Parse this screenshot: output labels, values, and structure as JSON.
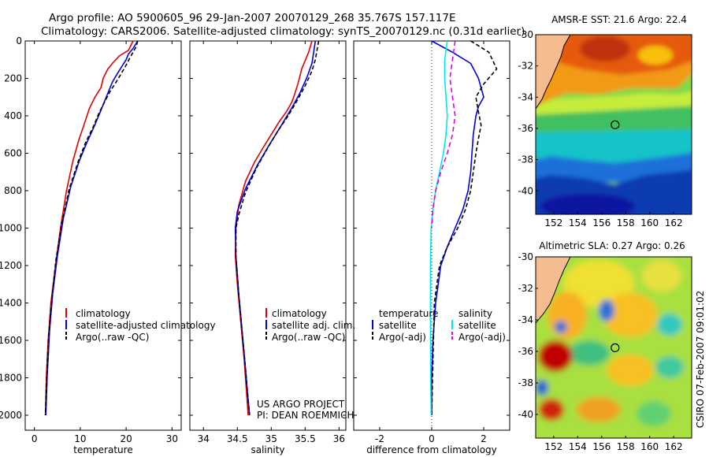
{
  "header": {
    "line1": "Argo profile: AO 5900605_96 29-Jan-2007 20070129_268 35.767S 157.117E",
    "line2": "Climatology: CARS2006. Satellite-adjusted climatology: synTS_20070129.nc (0.31d earlier)"
  },
  "footer": {
    "project": "US ARGO PROJECT",
    "pi": "PI: DEAN ROEMMICH",
    "stamp": "CSIRO 07-Feb-2007 09:01:02"
  },
  "colors": {
    "climatology": "#e00000",
    "satellite": "#0000e0",
    "argo": "#000000",
    "temp_sat_diff": "#00e8e8",
    "sal_argo_diff": "#e000e0",
    "land": "#f5bc8f"
  },
  "chart_data": [
    {
      "type": "line",
      "id": "temperature",
      "xlabel": "temperature",
      "ylabel": "",
      "xlim": [
        -2,
        32
      ],
      "ylim": [
        2080,
        0
      ],
      "y_inverted": true,
      "xticks": [
        "0",
        "10",
        "20",
        "30"
      ],
      "xtick_values": [
        0,
        10,
        20,
        30
      ],
      "yticks": [
        "0",
        "200",
        "400",
        "600",
        "800",
        "1000",
        "1200",
        "1400",
        "1600",
        "1800",
        "2000"
      ],
      "ytick_values": [
        0,
        200,
        400,
        600,
        800,
        1000,
        1200,
        1400,
        1600,
        1800,
        2000
      ],
      "legend": [
        "climatology",
        "satellite-adjusted climatology",
        "Argo(..raw -QC)"
      ],
      "series": [
        {
          "name": "climatology",
          "color": "#e00000",
          "dash": "",
          "x": [
            21.5,
            20.5,
            18.5,
            17.0,
            16.0,
            15.0,
            14.5,
            13.2,
            12.0,
            10.8,
            9.8,
            8.4,
            7.0,
            5.7,
            4.6,
            3.6,
            3.0,
            2.6,
            2.4
          ],
          "y": [
            0,
            50,
            80,
            120,
            150,
            200,
            250,
            300,
            360,
            450,
            520,
            640,
            800,
            1000,
            1200,
            1400,
            1600,
            1800,
            2000
          ]
        },
        {
          "name": "satellite-adjusted climatology",
          "color": "#0000e0",
          "dash": "",
          "x": [
            22.5,
            21.5,
            20.5,
            20.0,
            19.2,
            18.2,
            17.0,
            16.0,
            15.0,
            14.0,
            12.8,
            11.3,
            9.8,
            7.9,
            6.3,
            5.0,
            4.0,
            3.3,
            2.8,
            2.5
          ],
          "y": [
            0,
            40,
            70,
            100,
            130,
            170,
            220,
            280,
            340,
            400,
            470,
            550,
            640,
            780,
            950,
            1150,
            1350,
            1550,
            1780,
            2000
          ]
        },
        {
          "name": "Argo(..raw -QC)",
          "color": "#000000",
          "dash": "5,3",
          "x": [
            22.5,
            22.2,
            21.5,
            20.8,
            20.2,
            19.5,
            18.8,
            17.8,
            16.5,
            15.2,
            14.0,
            12.8,
            11.2,
            9.6,
            7.6,
            6.0,
            4.7,
            3.8,
            3.1,
            2.7,
            2.4
          ],
          "y": [
            0,
            30,
            60,
            90,
            120,
            150,
            180,
            220,
            270,
            330,
            390,
            460,
            540,
            640,
            790,
            970,
            1170,
            1380,
            1580,
            1790,
            2000
          ]
        }
      ]
    },
    {
      "type": "line",
      "id": "salinity",
      "xlabel": "salinity",
      "ylabel": "",
      "xlim": [
        33.8,
        36.1
      ],
      "ylim": [
        2080,
        0
      ],
      "y_inverted": true,
      "xticks": [
        "34",
        "34.5",
        "35",
        "35.5",
        "36"
      ],
      "xtick_values": [
        34,
        34.5,
        35,
        35.5,
        36
      ],
      "legend": [
        "climatology",
        "satellite adj. clim.",
        "Argo(..raw -QC)"
      ],
      "series": [
        {
          "name": "climatology",
          "color": "#e00000",
          "dash": "",
          "x": [
            35.6,
            35.55,
            35.45,
            35.4,
            35.35,
            35.3,
            35.22,
            35.12,
            35.0,
            34.88,
            34.75,
            34.62,
            34.52,
            34.48,
            34.47,
            34.5,
            34.55,
            34.6,
            34.63,
            34.66
          ],
          "y": [
            0,
            60,
            150,
            220,
            280,
            330,
            380,
            430,
            500,
            570,
            650,
            750,
            880,
            1000,
            1150,
            1300,
            1500,
            1700,
            1850,
            2000
          ]
        },
        {
          "name": "satellite adj. clim.",
          "color": "#0000e0",
          "dash": "",
          "x": [
            35.65,
            35.63,
            35.6,
            35.52,
            35.42,
            35.3,
            35.15,
            34.98,
            34.8,
            34.62,
            34.5,
            34.47,
            34.48,
            34.52,
            34.57,
            34.62,
            34.65,
            34.68
          ],
          "y": [
            0,
            50,
            120,
            200,
            280,
            360,
            450,
            550,
            660,
            790,
            910,
            1000,
            1150,
            1350,
            1550,
            1750,
            1880,
            2000
          ]
        },
        {
          "name": "Argo(..raw -QC)",
          "color": "#000000",
          "dash": "5,3",
          "x": [
            35.7,
            35.68,
            35.65,
            35.6,
            35.5,
            35.38,
            35.25,
            35.1,
            34.95,
            34.78,
            34.62,
            34.52,
            34.48,
            34.48,
            34.52,
            34.57,
            34.62,
            34.65,
            34.68
          ],
          "y": [
            0,
            40,
            100,
            160,
            240,
            320,
            400,
            480,
            570,
            680,
            810,
            930,
            1000,
            1150,
            1350,
            1550,
            1750,
            1880,
            2000
          ]
        }
      ]
    },
    {
      "type": "line",
      "id": "difference",
      "xlabel": "difference from climatology",
      "ylabel": "",
      "xlim": [
        -3,
        3
      ],
      "ylim": [
        2080,
        0
      ],
      "y_inverted": true,
      "xticks": [
        "-2",
        "0",
        "2"
      ],
      "xtick_values": [
        -2,
        0,
        2
      ],
      "legend_headers": [
        "temperature",
        "salinity"
      ],
      "legend": [
        "satellite",
        "Argo(-adj)",
        "satellite",
        "Argo(-adj)"
      ],
      "series": [
        {
          "name": "satellite",
          "group": "temperature",
          "color": "#0000e0",
          "dash": "",
          "x": [
            0,
            0.8,
            1.5,
            1.8,
            1.9,
            2.0,
            1.8,
            1.7,
            1.6,
            1.55,
            1.5,
            1.4,
            1.2,
            0.9,
            0.6,
            0.35,
            0.15,
            0.05,
            0.0,
            0.0
          ],
          "y": [
            0,
            60,
            120,
            200,
            250,
            300,
            350,
            400,
            500,
            600,
            700,
            800,
            900,
            1000,
            1100,
            1200,
            1400,
            1600,
            1800,
            2000
          ]
        },
        {
          "name": "Argo(-adj)",
          "group": "temperature",
          "color": "#000000",
          "dash": "5,3",
          "x": [
            1.5,
            2.2,
            2.5,
            2.0,
            1.7,
            1.8,
            1.9,
            1.8,
            1.7,
            1.6,
            1.5,
            1.3,
            1.0,
            0.6,
            0.3,
            0.1,
            0.0
          ],
          "y": [
            0,
            60,
            150,
            230,
            300,
            380,
            450,
            520,
            600,
            700,
            800,
            900,
            1000,
            1100,
            1200,
            1400,
            2000
          ]
        },
        {
          "name": "satellite",
          "group": "salinity",
          "color": "#00e8e8",
          "dash": "",
          "x": [
            0.6,
            0.5,
            0.5,
            0.55,
            0.6,
            0.55,
            0.45,
            0.3,
            0.15,
            0.05,
            -0.02,
            -0.05,
            -0.05,
            -0.04,
            -0.02
          ],
          "y": [
            0,
            100,
            200,
            300,
            400,
            500,
            600,
            700,
            800,
            900,
            1000,
            1200,
            1500,
            1800,
            2000
          ]
        },
        {
          "name": "Argo(-adj)",
          "group": "salinity",
          "color": "#e000e0",
          "dash": "6,4",
          "x": [
            0.9,
            0.8,
            0.7,
            0.8,
            0.9,
            0.8,
            0.6,
            0.35,
            0.15,
            0.05,
            0.0
          ],
          "y": [
            0,
            100,
            200,
            300,
            400,
            500,
            600,
            700,
            800,
            900,
            1000
          ]
        }
      ]
    },
    {
      "type": "heatmap",
      "id": "sst_map",
      "title": "AMSR-E SST: 21.6 Argo: 22.4",
      "xlim": [
        150.5,
        163.5
      ],
      "ylim": [
        -41.5,
        -30
      ],
      "xticks": [
        "152",
        "154",
        "156",
        "158",
        "160",
        "162"
      ],
      "xtick_values": [
        152,
        154,
        156,
        158,
        160,
        162
      ],
      "yticks": [
        "-30",
        "-32",
        "-34",
        "-36",
        "-38",
        "-40"
      ],
      "ytick_values": [
        -30,
        -32,
        -34,
        -36,
        -38,
        -40
      ],
      "marker": {
        "lon": 157.117,
        "lat": -35.767
      },
      "colormap": "jet"
    },
    {
      "type": "heatmap",
      "id": "sla_map",
      "title": "Altimetric SLA: 0.27 Argo: 0.26",
      "xlim": [
        150.5,
        163.5
      ],
      "ylim": [
        -41.5,
        -30
      ],
      "xticks": [
        "152",
        "154",
        "156",
        "158",
        "160",
        "162"
      ],
      "xtick_values": [
        152,
        154,
        156,
        158,
        160,
        162
      ],
      "yticks": [
        "-30",
        "-32",
        "-34",
        "-36",
        "-38",
        "-40"
      ],
      "ytick_values": [
        -30,
        -32,
        -34,
        -36,
        -38,
        -40
      ],
      "marker": {
        "lon": 157.117,
        "lat": -35.767
      },
      "colormap": "jet"
    }
  ]
}
